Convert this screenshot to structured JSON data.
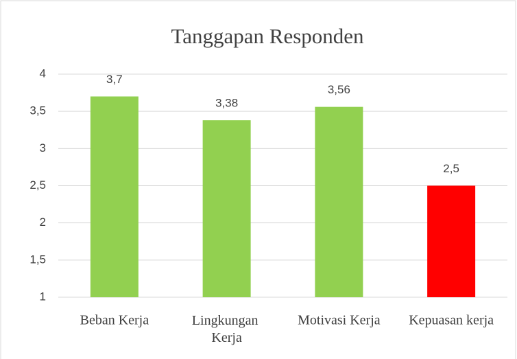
{
  "chart_data": {
    "type": "bar",
    "title": "Tanggapan Responden",
    "categories": [
      "Beban Kerja",
      "Lingkungan Kerja",
      "Motivasi Kerja",
      "Kepuasan kerja"
    ],
    "values": [
      3.7,
      3.38,
      3.56,
      2.5
    ],
    "value_labels": [
      "3,7",
      "3,38",
      "3,56",
      "2,5"
    ],
    "colors": [
      "#92d050",
      "#92d050",
      "#92d050",
      "#ff0000"
    ],
    "ylim": [
      1,
      4
    ],
    "yticks": [
      1,
      {
        "value": 1.5,
        "label": "1,5"
      },
      2,
      {
        "value": 2.5,
        "label": "2,5"
      },
      3,
      {
        "value": 3.5,
        "label": "3,5"
      },
      4
    ],
    "grid": true
  }
}
